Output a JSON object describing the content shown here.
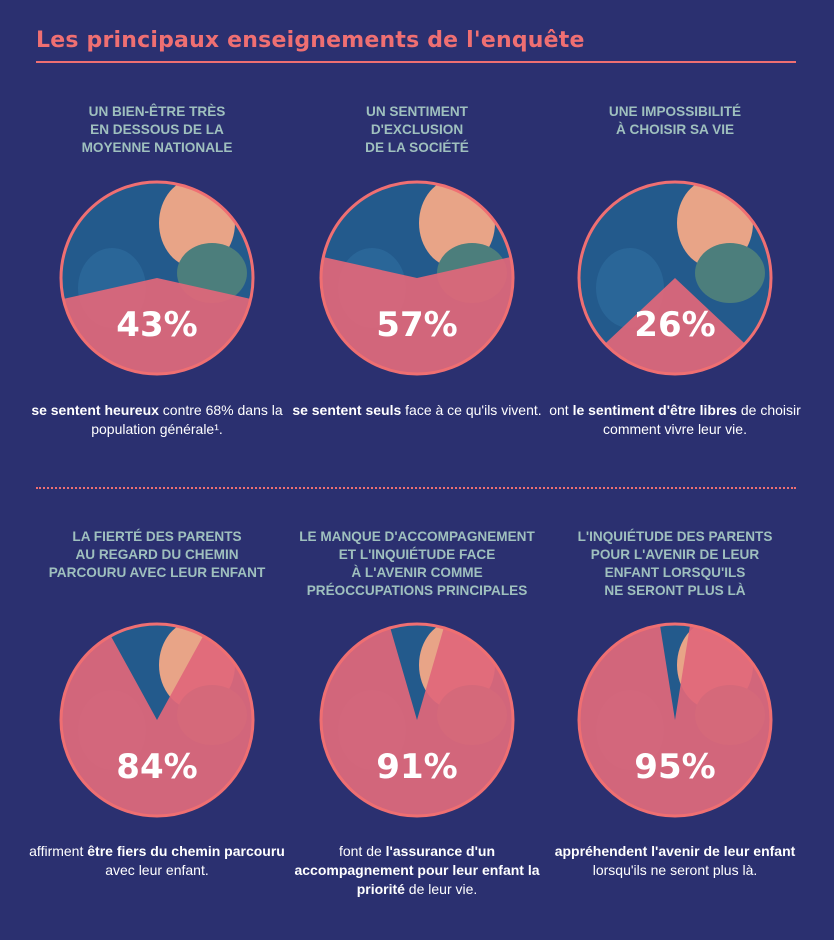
{
  "title": "Les principaux enseignements de l'enquête",
  "colors": {
    "background": "#2b3070",
    "accent": "#ef6f72",
    "heading": "#9fc0be",
    "pie_fill": "#e0677a",
    "pie_rest": "#235a8c",
    "silhouette_light": "#e8a487",
    "silhouette_teal": "#4c7e7c"
  },
  "cards": [
    {
      "heading": "UN BIEN-ÊTRE TRÈS\nEN DESSOUS DE LA\nMOYENNE NATIONALE",
      "percent_label": "43%",
      "caption_parts": [
        {
          "text": "se sentent heureux",
          "bold": true
        },
        {
          "text": " contre 68% dans la population générale¹.",
          "bold": false
        }
      ]
    },
    {
      "heading": "UN SENTIMENT\nD'EXCLUSION\nDE LA SOCIÉTÉ",
      "percent_label": "57%",
      "caption_parts": [
        {
          "text": "se sentent seuls",
          "bold": true
        },
        {
          "text": " face à ce qu'ils vivent.",
          "bold": false
        }
      ]
    },
    {
      "heading": "UNE IMPOSSIBILITÉ\nÀ CHOISIR SA VIE",
      "percent_label": "26%",
      "caption_parts": [
        {
          "text": "ont ",
          "bold": false
        },
        {
          "text": "le sentiment d'être libres",
          "bold": true
        },
        {
          "text": " de choisir comment vivre leur vie.",
          "bold": false
        }
      ]
    },
    {
      "heading": "LA FIERTÉ DES PARENTS\nAU REGARD DU CHEMIN\nPARCOURU AVEC LEUR ENFANT",
      "percent_label": "84%",
      "caption_parts": [
        {
          "text": "affirment ",
          "bold": false
        },
        {
          "text": "être fiers du chemin parcouru",
          "bold": true
        },
        {
          "text": " avec leur enfant.",
          "bold": false
        }
      ]
    },
    {
      "heading": "LE MANQUE D'ACCOMPAGNEMENT\nET L'INQUIÉTUDE FACE\nÀ L'AVENIR  COMME\nPRÉOCCUPATIONS PRINCIPALES",
      "percent_label": "91%",
      "caption_parts": [
        {
          "text": "font de ",
          "bold": false
        },
        {
          "text": "l'assurance d'un accompagnement pour leur enfant la priorité",
          "bold": true
        },
        {
          "text": " de leur vie.",
          "bold": false
        }
      ]
    },
    {
      "heading": "L'INQUIÉTUDE DES PARENTS\nPOUR L'AVENIR DE LEUR\nENFANT LORSQU'ILS\nNE SERONT PLUS LÀ",
      "percent_label": "95%",
      "caption_parts": [
        {
          "text": "appréhendent l'avenir de leur enfant",
          "bold": true
        },
        {
          "text": " lorsqu'ils ne seront plus là.",
          "bold": false
        }
      ]
    }
  ],
  "chart_data": [
    {
      "type": "pie",
      "values": [
        43,
        57
      ],
      "title": "UN BIEN-ÊTRE TRÈS EN DESSOUS DE LA MOYENNE NATIONALE"
    },
    {
      "type": "pie",
      "values": [
        57,
        43
      ],
      "title": "UN SENTIMENT D'EXCLUSION DE LA SOCIÉTÉ"
    },
    {
      "type": "pie",
      "values": [
        26,
        74
      ],
      "title": "UNE IMPOSSIBILITÉ À CHOISIR SA VIE"
    },
    {
      "type": "pie",
      "values": [
        84,
        16
      ],
      "title": "LA FIERTÉ DES PARENTS AU REGARD DU CHEMIN PARCOURU AVEC LEUR ENFANT"
    },
    {
      "type": "pie",
      "values": [
        91,
        9
      ],
      "title": "LE MANQUE D'ACCOMPAGNEMENT ET L'INQUIÉTUDE FACE À L'AVENIR COMME PRÉOCCUPATIONS PRINCIPALES"
    },
    {
      "type": "pie",
      "values": [
        95,
        5
      ],
      "title": "L'INQUIÉTUDE DES PARENTS POUR L'AVENIR DE LEUR ENFANT LORSQU'ILS NE SERONT PLUS LÀ"
    }
  ]
}
